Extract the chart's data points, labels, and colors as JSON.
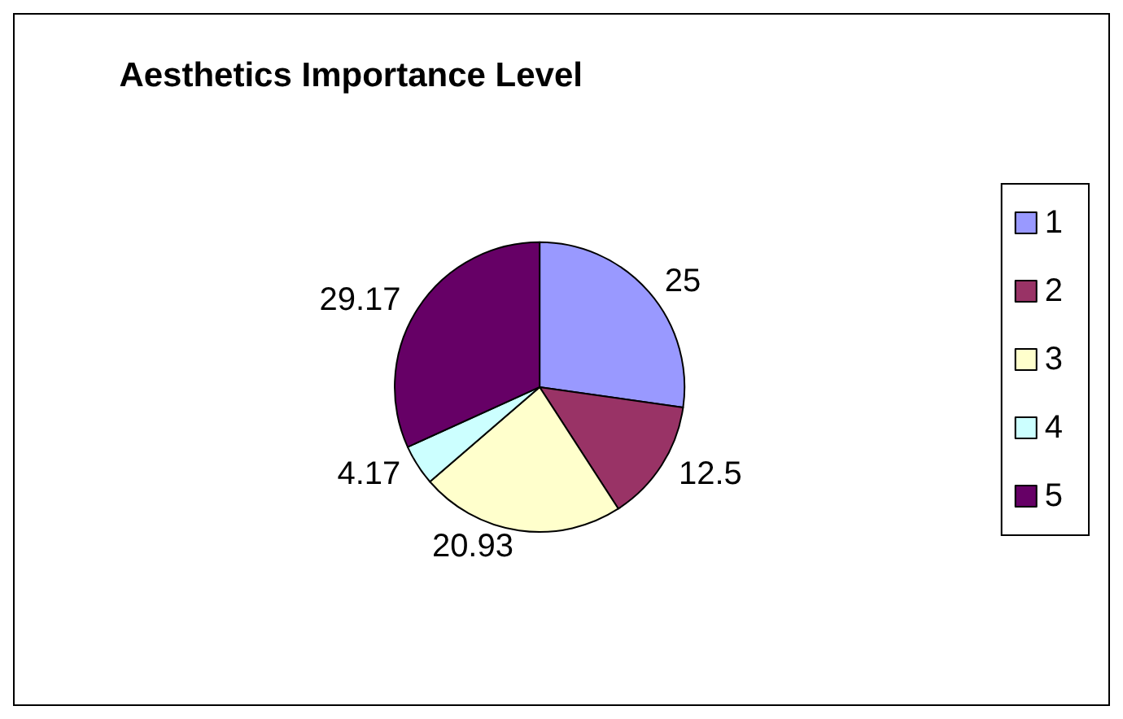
{
  "chart_data": {
    "type": "pie",
    "title": "Aesthetics Importance Level",
    "categories": [
      "1",
      "2",
      "3",
      "4",
      "5"
    ],
    "values": [
      25,
      12.5,
      20.93,
      4.17,
      29.17
    ],
    "colors": [
      "#9999ff",
      "#993366",
      "#ffffcc",
      "#ccffff",
      "#660066"
    ],
    "data_labels": true,
    "legend": "right"
  }
}
